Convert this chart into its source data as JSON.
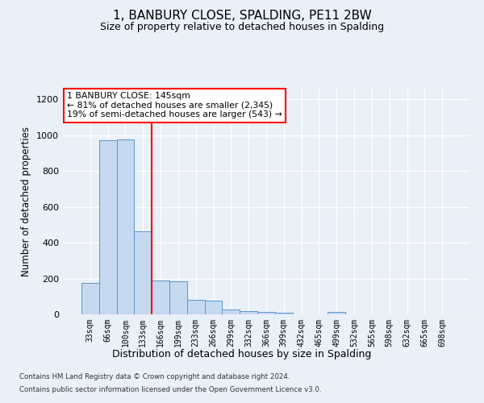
{
  "title": "1, BANBURY CLOSE, SPALDING, PE11 2BW",
  "subtitle": "Size of property relative to detached houses in Spalding",
  "xlabel": "Distribution of detached houses by size in Spalding",
  "ylabel": "Number of detached properties",
  "bar_color": "#c5d9f0",
  "bar_edge_color": "#5a96cc",
  "categories": [
    "33sqm",
    "66sqm",
    "100sqm",
    "133sqm",
    "166sqm",
    "199sqm",
    "233sqm",
    "266sqm",
    "299sqm",
    "332sqm",
    "366sqm",
    "399sqm",
    "432sqm",
    "465sqm",
    "499sqm",
    "532sqm",
    "565sqm",
    "598sqm",
    "632sqm",
    "665sqm",
    "698sqm"
  ],
  "values": [
    175,
    970,
    975,
    465,
    190,
    185,
    80,
    75,
    25,
    20,
    15,
    8,
    0,
    0,
    12,
    0,
    0,
    0,
    0,
    0,
    0
  ],
  "red_line_x": 3.5,
  "annotation_text": "1 BANBURY CLOSE: 145sqm\n← 81% of detached houses are smaller (2,345)\n19% of semi-detached houses are larger (543) →",
  "annotation_box_color": "white",
  "annotation_box_edge": "red",
  "ylim": [
    0,
    1260
  ],
  "yticks": [
    0,
    200,
    400,
    600,
    800,
    1000,
    1200
  ],
  "footnote1": "Contains HM Land Registry data © Crown copyright and database right 2024.",
  "footnote2": "Contains public sector information licensed under the Open Government Licence v3.0.",
  "background_color": "#eaf0f8",
  "grid_color": "white",
  "title_fontsize": 11,
  "subtitle_fontsize": 9
}
